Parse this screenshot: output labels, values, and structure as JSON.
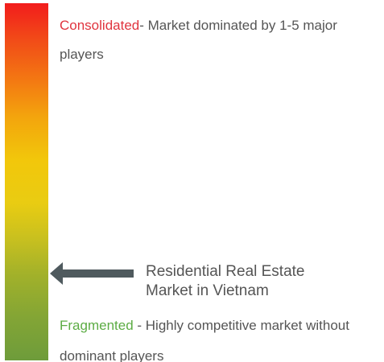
{
  "scale": {
    "top_color": "#f21c1c",
    "middle_color": "#f2c70b",
    "bottom_color": "#6e9c3b"
  },
  "consolidated": {
    "label": "Consolidated",
    "label_color": "#e0343e",
    "description": "- Market dominated by 1-5 major players"
  },
  "fragmented": {
    "label": "Fragmented",
    "label_color": "#5cac44",
    "description": " - Highly competitive market without dominant players"
  },
  "market": {
    "line1": "Residential Real Estate",
    "line2": "Market in Vietnam",
    "arrow_icon": "left-arrow-icon",
    "arrow_color": "#4f5a5e"
  }
}
